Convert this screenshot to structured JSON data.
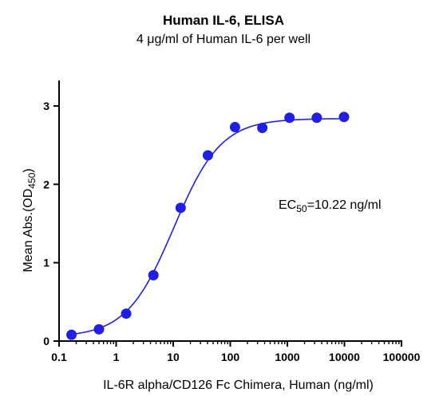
{
  "chart_data": {
    "type": "scatter",
    "title": "Human IL-6, ELISA",
    "subtitle": "4 μg/ml of Human IL-6 per well",
    "xlabel": "IL-6R alpha/CD126 Fc Chimera, Human (ng/ml)",
    "ylabel": {
      "text": "Mean Abs.(OD",
      "sub": "450",
      "close": ")"
    },
    "x_scale": "log",
    "xlim": [
      0.1,
      100000
    ],
    "ylim": [
      0,
      3.3
    ],
    "x_ticks": [
      "0.1",
      "1",
      "10",
      "100",
      "1000",
      "10000",
      "100000"
    ],
    "y_ticks": [
      "0",
      "1",
      "2",
      "3"
    ],
    "grid": false,
    "annotation": {
      "prefix": "EC",
      "sub": "50",
      "suffix": "=10.22 ng/ml"
    },
    "series": [
      {
        "x": [
          0.165,
          0.5,
          1.5,
          4.5,
          13.5,
          40.5,
          121,
          364,
          1090,
          3280,
          9830
        ],
        "y": [
          0.08,
          0.15,
          0.35,
          0.84,
          1.7,
          2.37,
          2.73,
          2.72,
          2.85,
          2.85,
          2.86
        ],
        "color": "#1f1fe6",
        "fit": {
          "model": "4PL",
          "bottom": 0.05,
          "top": 2.84,
          "ec50": 10.22,
          "hill": 1.05
        }
      }
    ]
  }
}
